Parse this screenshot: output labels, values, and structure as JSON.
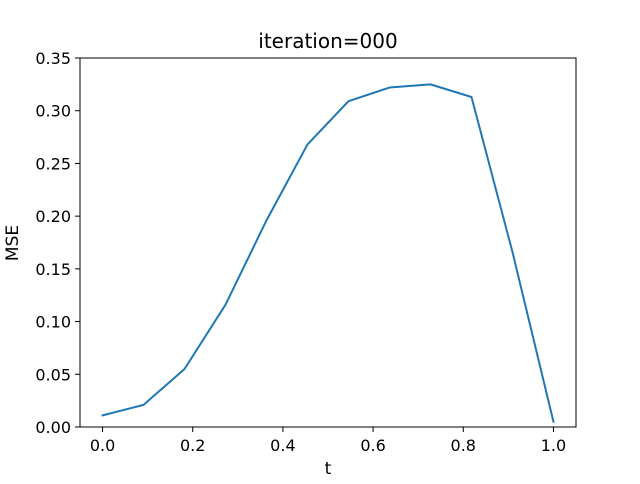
{
  "chart_data": {
    "type": "line",
    "title": "iteration=000",
    "xlabel": "t",
    "ylabel": "MSE",
    "xlim": [
      -0.05,
      1.05
    ],
    "ylim": [
      0.0,
      0.35
    ],
    "x_ticks": [
      0.0,
      0.2,
      0.4,
      0.6,
      0.8,
      1.0
    ],
    "x_tick_labels": [
      "0.0",
      "0.2",
      "0.4",
      "0.6",
      "0.8",
      "1.0"
    ],
    "y_ticks": [
      0.0,
      0.05,
      0.1,
      0.15,
      0.2,
      0.25,
      0.3,
      0.35
    ],
    "y_tick_labels": [
      "0.00",
      "0.05",
      "0.10",
      "0.15",
      "0.20",
      "0.25",
      "0.30",
      "0.35"
    ],
    "grid": false,
    "legend": "none",
    "series": [
      {
        "color": "#1f77b4",
        "x": [
          0.0,
          0.0909,
          0.1818,
          0.2727,
          0.3636,
          0.4545,
          0.5455,
          0.6364,
          0.7273,
          0.8182,
          0.9091,
          1.0
        ],
        "y": [
          0.011,
          0.021,
          0.055,
          0.116,
          0.196,
          0.268,
          0.309,
          0.322,
          0.325,
          0.313,
          0.166,
          0.005
        ]
      }
    ]
  }
}
